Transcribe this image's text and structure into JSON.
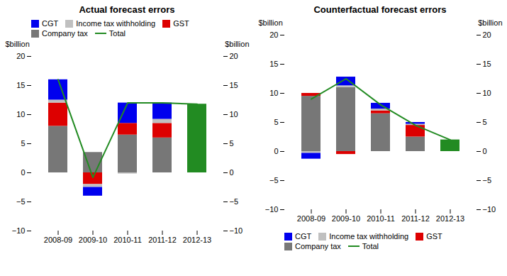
{
  "chart_data": [
    {
      "type": "bar",
      "title": "Actual forecast errors",
      "stacked": true,
      "legend": "upper left",
      "categories": [
        "2008-09",
        "2009-10",
        "2010-11",
        "2011-12",
        "2012-13"
      ],
      "ylabel": "$billion",
      "y2label": "$billion",
      "ylim": [
        -10,
        20
      ],
      "yticks": [
        -10,
        -5,
        0,
        5,
        10,
        15,
        20
      ],
      "y2lim": [
        -10,
        20
      ],
      "y2ticks": [
        -10,
        -5,
        0,
        5,
        10,
        15,
        20
      ],
      "series": [
        {
          "name": "Company tax",
          "type": "bar",
          "color": "#777777",
          "values": [
            8.0,
            3.5,
            6.5,
            6.0,
            0
          ]
        },
        {
          "name": "GST",
          "type": "bar",
          "color": "#DD0000",
          "values": [
            4.0,
            -2.0,
            2.0,
            2.5,
            0
          ]
        },
        {
          "name": "Income tax withholding",
          "type": "bar",
          "color": "#C0C0C0",
          "values": [
            0.5,
            -0.5,
            -0.2,
            0.7,
            0
          ]
        },
        {
          "name": "CGT",
          "type": "bar",
          "color": "#0000EE",
          "values": [
            3.5,
            -1.5,
            3.5,
            2.8,
            0
          ]
        },
        {
          "type": "bar",
          "color": "#228B22",
          "values": [
            0,
            0,
            0,
            0,
            11.8
          ]
        },
        {
          "name": "Total",
          "type": "line",
          "color": "#228B22",
          "values": [
            16.0,
            -0.8,
            12.0,
            12.0,
            11.8
          ]
        }
      ]
    },
    {
      "type": "bar",
      "title": "Counterfactual forecast errors",
      "stacked": true,
      "legend": "lower left",
      "categories": [
        "2008-09",
        "2009-10",
        "2010-11",
        "2011-12",
        "2012-13"
      ],
      "ylabel": "$billion",
      "y2label": "$billion",
      "ylim": [
        -10,
        20
      ],
      "yticks": [
        -10,
        -5,
        0,
        5,
        10,
        15,
        20
      ],
      "y2lim": [
        -10,
        20
      ],
      "y2ticks": [
        -10,
        -5,
        0,
        5,
        10,
        15,
        20
      ],
      "series": [
        {
          "name": "Company tax",
          "type": "bar",
          "color": "#777777",
          "values": [
            9.5,
            11.0,
            6.5,
            2.5,
            0
          ]
        },
        {
          "name": "GST",
          "type": "bar",
          "color": "#DD0000",
          "values": [
            0.5,
            -0.5,
            0.5,
            2.0,
            0
          ]
        },
        {
          "name": "Income tax withholding",
          "type": "bar",
          "color": "#C0C0C0",
          "values": [
            -0.3,
            0.3,
            0.3,
            0.2,
            0
          ]
        },
        {
          "name": "CGT",
          "type": "bar",
          "color": "#0000EE",
          "values": [
            -1.0,
            1.5,
            1.0,
            0.3,
            0
          ]
        },
        {
          "type": "bar",
          "color": "#228B22",
          "values": [
            0,
            0,
            0,
            0,
            2.0
          ]
        },
        {
          "name": "Total",
          "type": "line",
          "color": "#228B22",
          "values": [
            9.0,
            12.5,
            8.0,
            4.5,
            2.0
          ]
        }
      ]
    }
  ]
}
